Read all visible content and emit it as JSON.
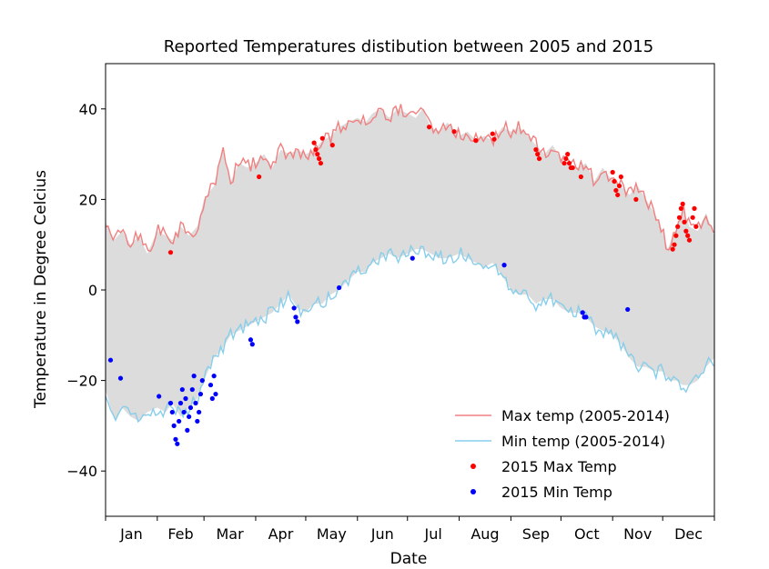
{
  "chart_data": {
    "type": "line",
    "title": "Reported Temperatures distibution between 2005 and 2015",
    "xlabel": "Date",
    "ylabel": "Temperature in Degree Celcius",
    "xlim": [
      0,
      365
    ],
    "ylim": [
      -50,
      50
    ],
    "yticks": [
      -40,
      -20,
      0,
      20,
      40
    ],
    "yticklabels": [
      "−40",
      "−20",
      "0",
      "20",
      "40"
    ],
    "month_ticks": [
      0,
      31,
      59,
      90,
      120,
      151,
      181,
      212,
      243,
      273,
      304,
      334,
      365
    ],
    "xticklabels": [
      "Jan",
      "Feb",
      "Mar",
      "Apr",
      "May",
      "Jun",
      "Jul",
      "Aug",
      "Sep",
      "Oct",
      "Nov",
      "Dec"
    ],
    "legend_position": "lower-right",
    "fill_between": "Max temp (2005-2014) and Min temp (2005-2014)",
    "fill_color": "#dcdcdc",
    "series": [
      {
        "name": "Max temp (2005-2014)",
        "kind": "line",
        "color": "#f08080",
        "x": [
          0,
          5,
          10,
          15,
          20,
          25,
          31,
          36,
          40,
          45,
          50,
          55,
          59,
          65,
          70,
          75,
          80,
          85,
          90,
          95,
          100,
          105,
          110,
          115,
          120,
          125,
          130,
          135,
          140,
          145,
          151,
          156,
          160,
          165,
          170,
          175,
          181,
          186,
          190,
          195,
          200,
          205,
          212,
          217,
          222,
          227,
          232,
          238,
          243,
          248,
          253,
          258,
          263,
          268,
          273,
          278,
          283,
          288,
          293,
          298,
          304,
          309,
          314,
          319,
          324,
          329,
          334,
          337,
          340,
          343,
          346,
          350,
          355,
          360,
          365
        ],
        "y": [
          15,
          11,
          13,
          10,
          12,
          8,
          13,
          12,
          11,
          14,
          12,
          14,
          20,
          23,
          31,
          24,
          28,
          27,
          28,
          30,
          27,
          31,
          30,
          31,
          30,
          31,
          33,
          34,
          36,
          37,
          38,
          37,
          39,
          40,
          38,
          40,
          39,
          38,
          40,
          36,
          35,
          37,
          34,
          35,
          33,
          34,
          33,
          36,
          35,
          36,
          34,
          32,
          30,
          32,
          29,
          28,
          27,
          28,
          24,
          27,
          24,
          23,
          21,
          23,
          20,
          17,
          13,
          9,
          12,
          14,
          18,
          14,
          13,
          17,
          12
        ]
      },
      {
        "name": "Min temp (2005-2014)",
        "kind": "line",
        "color": "#87ceeb",
        "x": [
          0,
          3,
          6,
          10,
          15,
          20,
          25,
          31,
          36,
          40,
          45,
          50,
          55,
          59,
          65,
          70,
          75,
          80,
          85,
          90,
          95,
          100,
          105,
          110,
          115,
          120,
          125,
          130,
          135,
          140,
          145,
          151,
          156,
          160,
          165,
          170,
          175,
          181,
          186,
          190,
          195,
          200,
          205,
          212,
          217,
          222,
          227,
          232,
          238,
          243,
          248,
          253,
          258,
          263,
          268,
          273,
          278,
          283,
          288,
          293,
          298,
          304,
          309,
          314,
          319,
          324,
          329,
          334,
          338,
          342,
          346,
          350,
          355,
          360,
          365
        ],
        "y": [
          -22,
          -26,
          -29,
          -26,
          -28,
          -29,
          -27,
          -26,
          -27,
          -25,
          -28,
          -26,
          -24,
          -20,
          -15,
          -13,
          -10,
          -9,
          -8,
          -7,
          -6,
          -5,
          -3,
          -1,
          -4,
          -5,
          -3,
          -3,
          -1,
          0,
          2,
          4,
          4,
          6,
          7,
          8,
          7,
          8,
          9,
          9,
          8,
          7,
          7,
          8,
          7,
          6,
          5,
          6,
          3,
          0,
          -1,
          -1,
          -3,
          -2,
          -2,
          -4,
          -5,
          -5,
          -6,
          -8,
          -9,
          -10,
          -12,
          -15,
          -17,
          -17,
          -18,
          -18,
          -20,
          -20,
          -21,
          -21,
          -20,
          -17,
          -15
        ]
      },
      {
        "name": "2015 Max Temp",
        "kind": "scatter",
        "color": "#ff0000",
        "x": [
          39,
          92,
          125,
          126,
          127,
          128,
          129,
          130,
          136,
          194,
          209,
          222,
          232,
          233,
          258,
          259,
          260,
          275,
          276,
          277,
          278,
          279,
          280,
          285,
          304,
          305,
          306,
          307,
          308,
          309,
          318,
          340,
          341,
          342,
          343,
          344,
          345,
          346,
          347,
          348,
          349,
          350,
          352,
          353,
          354
        ],
        "y": [
          8.3,
          25,
          32.5,
          31,
          30,
          29,
          28,
          33.5,
          32,
          36,
          35,
          33,
          34.5,
          33.3,
          31,
          30,
          29,
          28,
          29,
          30,
          28,
          27,
          27,
          25,
          26,
          24,
          22,
          21,
          23,
          25,
          20,
          9,
          10,
          12,
          14,
          16,
          18,
          19,
          15,
          13,
          12,
          11,
          16,
          18,
          14
        ]
      },
      {
        "name": "2015 Min Temp",
        "kind": "scatter",
        "color": "#0000ff",
        "x": [
          3,
          9,
          32,
          39,
          40,
          41,
          42,
          43,
          44,
          45,
          46,
          47,
          48,
          49,
          50,
          51,
          52,
          53,
          54,
          55,
          56,
          57,
          58,
          63,
          64,
          65,
          66,
          87,
          88,
          113,
          114,
          115,
          140,
          184,
          239,
          286,
          287,
          288,
          313
        ],
        "y": [
          -15.5,
          -19.5,
          -23.5,
          -25,
          -27,
          -30,
          -33,
          -34,
          -29,
          -25,
          -22,
          -27,
          -24,
          -31,
          -28,
          -26,
          -22,
          -19,
          -25,
          -29,
          -27,
          -23,
          -20,
          -21,
          -24,
          -19,
          -23,
          -11,
          -12,
          -4,
          -6,
          -7,
          0.5,
          7,
          5.5,
          -5,
          -6,
          -6,
          -4.3
        ]
      }
    ]
  }
}
